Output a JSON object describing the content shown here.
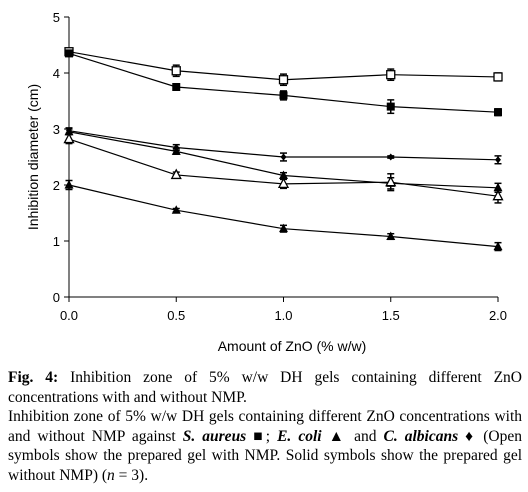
{
  "chart_data": {
    "type": "line",
    "xlabel": "Amount of ZnO (% w/w)",
    "ylabel": "Inhibition diameter (cm)",
    "xlim": [
      0,
      2
    ],
    "ylim": [
      0,
      5
    ],
    "x_ticks": [
      "0.0",
      "0.5",
      "1.0",
      "1.5",
      "2.0"
    ],
    "y_ticks": [
      "0",
      "1",
      "2",
      "3",
      "4",
      "5"
    ],
    "grid": false,
    "x": [
      0,
      0.5,
      1.0,
      1.5,
      2.0
    ],
    "series": [
      {
        "marker": "open-square",
        "values": [
          4.38,
          4.04,
          3.88,
          3.97,
          3.93
        ],
        "errors": [
          0.06,
          0.1,
          0.1,
          0.1,
          0.07
        ]
      },
      {
        "marker": "filled-square",
        "values": [
          4.35,
          3.75,
          3.6,
          3.4,
          3.3
        ],
        "errors": [
          0.05,
          0.04,
          0.08,
          0.12,
          0.06
        ]
      },
      {
        "marker": "filled-diamond",
        "values": [
          2.97,
          2.67,
          2.5,
          2.5,
          2.45
        ],
        "errors": [
          0.05,
          0.05,
          0.07,
          0.02,
          0.07
        ]
      },
      {
        "marker": "filled-triangle",
        "values": [
          2.95,
          2.6,
          2.17,
          2.03,
          1.95
        ],
        "errors": [
          0.05,
          0.05,
          0.05,
          0.1,
          0.08
        ]
      },
      {
        "marker": "open-triangle",
        "values": [
          2.82,
          2.18,
          2.02,
          2.05,
          1.8
        ],
        "errors": [
          0.08,
          0.05,
          0.08,
          0.15,
          0.12
        ]
      },
      {
        "marker": "filled-triangle",
        "values": [
          2.0,
          1.55,
          1.22,
          1.08,
          0.9
        ],
        "errors": [
          0.08,
          0.03,
          0.06,
          0.05,
          0.07
        ]
      }
    ]
  },
  "caption": {
    "fig_label": "Fig. 4:",
    "fig_title": " Inhibition zone of 5% w/w DH gels containing different ZnO concentrations with and without NMP.",
    "body_1": "Inhibition zone of 5% w/w DH gels containing different ZnO concentrations with and without NMP against ",
    "s_aureus": "S. aureus",
    "sym_square": " ■; ",
    "e_coli": "E. coli",
    "sym_triangle": " ▲ and ",
    "c_albicans": "C. albicans",
    "sym_diamond": " ♦ (Open symbols show the prepared gel with NMP. Solid symbols show the prepared gel without NMP) (",
    "n_letter": "n",
    "body_end": " = 3)."
  }
}
